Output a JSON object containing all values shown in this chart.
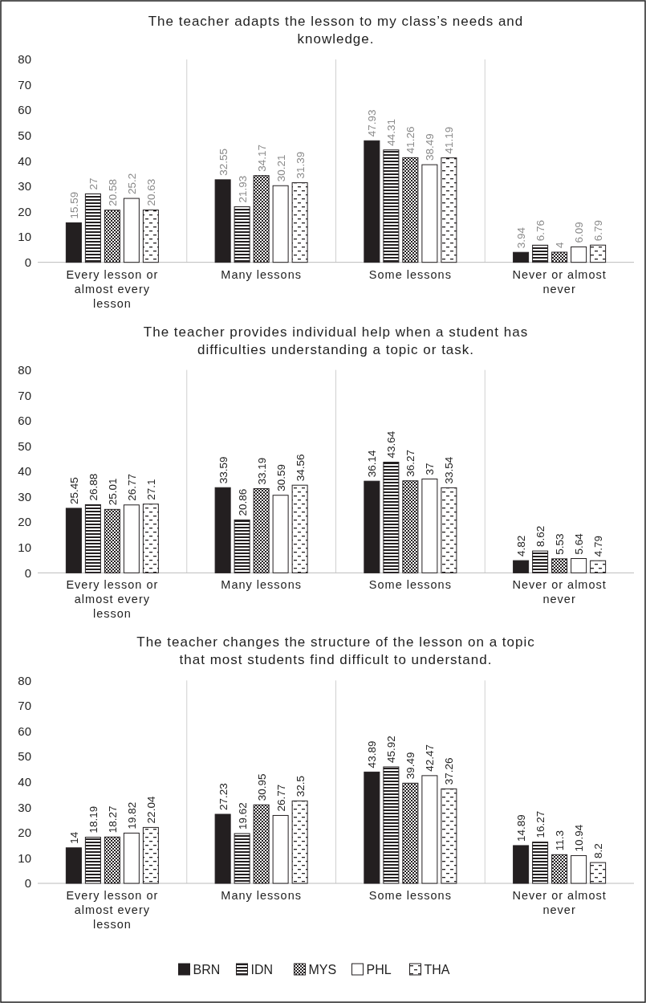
{
  "chart_data": [
    {
      "type": "bar",
      "title": "The teacher adapts the lesson to my class’s needs and knowledge.",
      "categories": [
        "Every lesson or almost every lesson",
        "Many lessons",
        "Some lessons",
        "Never or almost never"
      ],
      "ylim": [
        0,
        80
      ],
      "yticks": [
        0,
        10,
        20,
        30,
        40,
        50,
        60,
        70,
        80
      ],
      "grid": "x",
      "data_labels": true,
      "series": [
        {
          "color": "#231f20",
          "values": [
            15.59,
            32.55,
            47.93,
            3.94
          ]
        },
        {
          "color": "#231f20",
          "values": [
            27,
            21.93,
            44.31,
            6.76
          ]
        },
        {
          "color": "#231f20",
          "values": [
            20.58,
            34.17,
            41.26,
            4
          ]
        },
        {
          "color": "#ffffff",
          "values": [
            25.2,
            30.21,
            38.49,
            6.09
          ]
        },
        {
          "color": "#231f20",
          "values": [
            20.63,
            31.39,
            41.19,
            6.79
          ]
        }
      ]
    },
    {
      "type": "bar",
      "title": "The teacher provides individual help when a student has difficulties understanding a topic or task.",
      "categories": [
        "Every lesson or almost every lesson",
        "Many lessons",
        "Some lessons",
        "Never or almost never"
      ],
      "ylim": [
        0,
        80
      ],
      "yticks": [
        0,
        10,
        20,
        30,
        40,
        50,
        60,
        70,
        80
      ],
      "grid": "x",
      "data_labels": true,
      "series": [
        {
          "color": "#231f20",
          "values": [
            25.45,
            33.59,
            36.14,
            4.82
          ]
        },
        {
          "color": "#231f20",
          "values": [
            26.88,
            20.86,
            43.64,
            8.62
          ]
        },
        {
          "color": "#231f20",
          "values": [
            25.01,
            33.19,
            36.27,
            5.53
          ]
        },
        {
          "color": "#ffffff",
          "values": [
            26.77,
            30.59,
            37,
            5.64
          ]
        },
        {
          "color": "#231f20",
          "values": [
            27.1,
            34.56,
            33.54,
            4.79
          ]
        }
      ]
    },
    {
      "type": "bar",
      "title": "The teacher changes the structure of the lesson on a topic that most students find difficult to understand.",
      "categories": [
        "Every lesson or almost every lesson",
        "Many lessons",
        "Some lessons",
        "Never or almost never"
      ],
      "ylim": [
        0,
        80
      ],
      "yticks": [
        0,
        10,
        20,
        30,
        40,
        50,
        60,
        70,
        80
      ],
      "grid": "x",
      "data_labels": true,
      "legend": "bottom",
      "series": [
        {
          "name": "BRN",
          "color": "#231f20",
          "values": [
            14,
            27.23,
            43.89,
            14.89
          ]
        },
        {
          "name": "IDN",
          "color": "#231f20",
          "values": [
            18.19,
            19.62,
            45.92,
            16.27
          ]
        },
        {
          "name": "MYS",
          "color": "#231f20",
          "values": [
            18.27,
            30.95,
            39.49,
            11.3
          ]
        },
        {
          "name": "PHL",
          "color": "#ffffff",
          "values": [
            19.82,
            26.77,
            42.47,
            10.94
          ]
        },
        {
          "name": "THA",
          "color": "#231f20",
          "values": [
            22.04,
            32.5,
            37.26,
            8.2
          ]
        }
      ]
    }
  ]
}
